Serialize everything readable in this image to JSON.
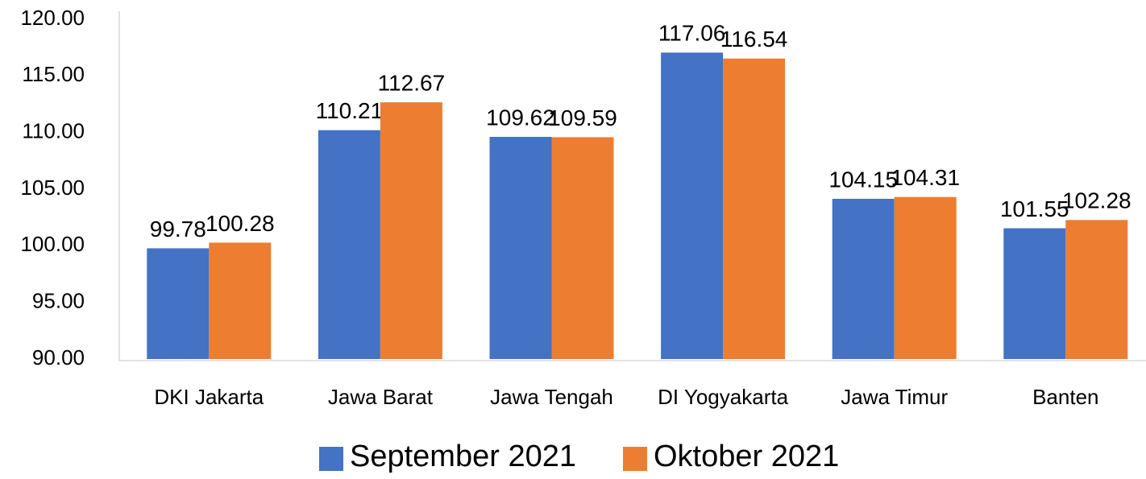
{
  "chart_data": {
    "type": "bar",
    "categories": [
      "DKI Jakarta",
      "Jawa Barat",
      "Jawa Tengah",
      "DI Yogyakarta",
      "Jawa Timur",
      "Banten"
    ],
    "series": [
      {
        "name": "September 2021",
        "color": "#4472c4",
        "values": [
          99.78,
          110.21,
          109.62,
          117.06,
          104.15,
          101.55
        ]
      },
      {
        "name": "Oktober 2021",
        "color": "#ed7d31",
        "values": [
          100.28,
          112.67,
          109.59,
          116.54,
          104.31,
          102.28
        ]
      }
    ],
    "ylim": [
      90,
      120
    ],
    "yticks": [
      {
        "value": 90,
        "label": "90.00"
      },
      {
        "value": 95,
        "label": "95.00"
      },
      {
        "value": 100,
        "label": "100.00"
      },
      {
        "value": 105,
        "label": "105.00"
      },
      {
        "value": 110,
        "label": "110.00"
      },
      {
        "value": 115,
        "label": "115.00"
      },
      {
        "value": 120,
        "label": "120.00"
      }
    ],
    "grid": false,
    "legend": "bottom"
  }
}
